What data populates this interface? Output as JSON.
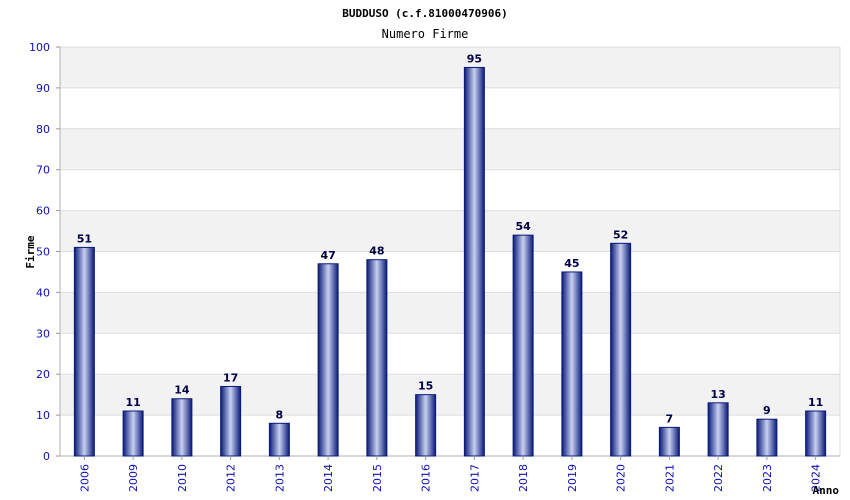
{
  "chart_data": {
    "type": "bar",
    "title": "BUDDUSO (c.f.81000470906)",
    "subtitle": "Numero Firme",
    "xlabel": "Anno",
    "ylabel": "Firme",
    "ylim": [
      0,
      100
    ],
    "yticks": [
      "0",
      "10",
      "20",
      "30",
      "40",
      "50",
      "60",
      "70",
      "80",
      "90",
      "100"
    ],
    "categories": [
      "2006",
      "2009",
      "2010",
      "2012",
      "2013",
      "2014",
      "2015",
      "2016",
      "2017",
      "2018",
      "2019",
      "2020",
      "2021",
      "2022",
      "2023",
      "2024"
    ],
    "values": [
      51,
      11,
      14,
      17,
      8,
      47,
      48,
      15,
      95,
      54,
      45,
      52,
      7,
      13,
      9,
      11
    ],
    "grid": true,
    "colors": {
      "bar_dark": "#0a1a7a",
      "bar_light": "#c8d0f0",
      "band": "#f2f2f2",
      "tick_text": "#1010b0"
    }
  }
}
